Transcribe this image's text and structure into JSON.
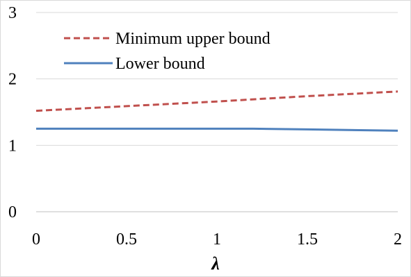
{
  "chart_data": {
    "type": "line",
    "title": "",
    "xlabel": "λ",
    "ylabel": "",
    "xlim": [
      0,
      2
    ],
    "ylim": [
      0,
      3
    ],
    "x_ticks": [
      "0",
      "0.5",
      "1",
      "1.5",
      "2"
    ],
    "y_ticks": [
      "0",
      "1",
      "2",
      "3"
    ],
    "grid": "horizontal",
    "legend_position": "top-left",
    "series": [
      {
        "name": "Minimum upper bound",
        "style": "dashed",
        "color": "#c0504d",
        "x": [
          0,
          0.5,
          1,
          1.5,
          2
        ],
        "y": [
          1.52,
          1.59,
          1.66,
          1.74,
          1.81
        ]
      },
      {
        "name": "Lower bound",
        "style": "solid",
        "color": "#4f81bd",
        "x": [
          0,
          0.5,
          1,
          1.2,
          1.5,
          2
        ],
        "y": [
          1.25,
          1.25,
          1.25,
          1.25,
          1.24,
          1.22
        ]
      }
    ]
  }
}
